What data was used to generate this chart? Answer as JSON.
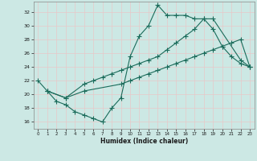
{
  "xlabel": "Humidex (Indice chaleur)",
  "bg_color": "#cce8e4",
  "line_color": "#1a6b5a",
  "grid_color": "#b0d0cc",
  "xlim": [
    -0.5,
    23.5
  ],
  "ylim": [
    15.0,
    33.5
  ],
  "yticks": [
    16,
    18,
    20,
    22,
    24,
    26,
    28,
    30,
    32
  ],
  "xticks": [
    0,
    1,
    2,
    3,
    4,
    5,
    6,
    7,
    8,
    9,
    10,
    11,
    12,
    13,
    14,
    15,
    16,
    17,
    18,
    19,
    20,
    21,
    22,
    23
  ],
  "line1_x": [
    0,
    1,
    2,
    3,
    4,
    5,
    6,
    7,
    8,
    9,
    10,
    11,
    12,
    13,
    14,
    15,
    16,
    17,
    18,
    19,
    20,
    21,
    22,
    23
  ],
  "line1_y": [
    22.0,
    20.5,
    19.0,
    18.5,
    17.5,
    17.0,
    16.5,
    16.0,
    18.0,
    19.5,
    25.5,
    28.5,
    30.0,
    33.0,
    31.5,
    31.5,
    31.5,
    31.0,
    31.0,
    29.5,
    27.0,
    25.5,
    24.5,
    24.0
  ],
  "line2_x": [
    1,
    3,
    5,
    6,
    7,
    8,
    9,
    10,
    11,
    12,
    13,
    14,
    15,
    16,
    17,
    18,
    19,
    22,
    23
  ],
  "line2_y": [
    20.5,
    19.5,
    21.5,
    22.0,
    22.5,
    23.0,
    23.5,
    24.0,
    24.5,
    25.0,
    25.5,
    26.5,
    27.5,
    28.5,
    29.5,
    31.0,
    31.0,
    25.0,
    24.0
  ],
  "line3_x": [
    1,
    3,
    5,
    9,
    10,
    11,
    12,
    13,
    14,
    15,
    16,
    17,
    18,
    19,
    20,
    21,
    22,
    23
  ],
  "line3_y": [
    20.5,
    19.5,
    20.5,
    21.5,
    22.0,
    22.5,
    23.0,
    23.5,
    24.0,
    24.5,
    25.0,
    25.5,
    26.0,
    26.5,
    27.0,
    27.5,
    28.0,
    24.0
  ]
}
